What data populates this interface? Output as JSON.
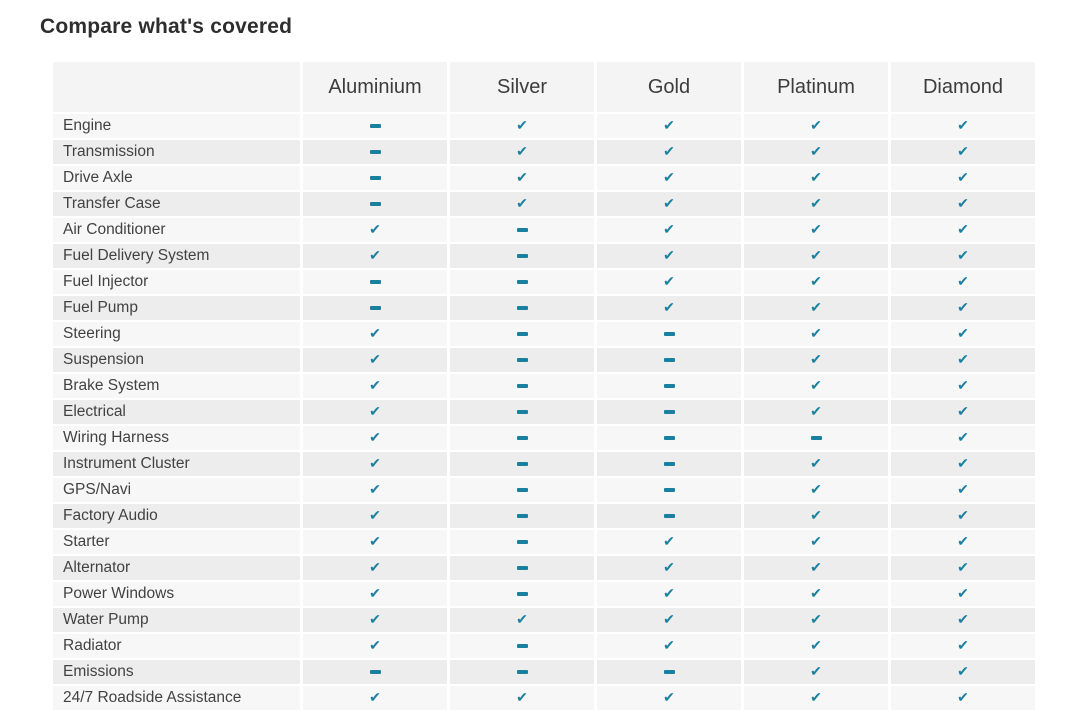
{
  "title": "Compare what's covered",
  "accent_color": "#1a80a0",
  "icons": {
    "check": "✔",
    "dash": "minus-dash"
  },
  "table": {
    "columns": [
      "Aluminium",
      "Silver",
      "Gold",
      "Platinum",
      "Diamond"
    ],
    "rows": [
      {
        "label": "Engine",
        "covered": [
          false,
          true,
          true,
          true,
          true
        ]
      },
      {
        "label": "Transmission",
        "covered": [
          false,
          true,
          true,
          true,
          true
        ]
      },
      {
        "label": "Drive Axle",
        "covered": [
          false,
          true,
          true,
          true,
          true
        ]
      },
      {
        "label": "Transfer Case",
        "covered": [
          false,
          true,
          true,
          true,
          true
        ]
      },
      {
        "label": "Air Conditioner",
        "covered": [
          true,
          false,
          true,
          true,
          true
        ]
      },
      {
        "label": "Fuel Delivery System",
        "covered": [
          true,
          false,
          true,
          true,
          true
        ]
      },
      {
        "label": "Fuel Injector",
        "covered": [
          false,
          false,
          true,
          true,
          true
        ]
      },
      {
        "label": "Fuel Pump",
        "covered": [
          false,
          false,
          true,
          true,
          true
        ]
      },
      {
        "label": "Steering",
        "covered": [
          true,
          false,
          false,
          true,
          true
        ]
      },
      {
        "label": "Suspension",
        "covered": [
          true,
          false,
          false,
          true,
          true
        ]
      },
      {
        "label": "Brake System",
        "covered": [
          true,
          false,
          false,
          true,
          true
        ]
      },
      {
        "label": "Electrical",
        "covered": [
          true,
          false,
          false,
          true,
          true
        ]
      },
      {
        "label": "Wiring Harness",
        "covered": [
          true,
          false,
          false,
          false,
          true
        ]
      },
      {
        "label": "Instrument Cluster",
        "covered": [
          true,
          false,
          false,
          true,
          true
        ]
      },
      {
        "label": "GPS/Navi",
        "covered": [
          true,
          false,
          false,
          true,
          true
        ]
      },
      {
        "label": "Factory Audio",
        "covered": [
          true,
          false,
          false,
          true,
          true
        ]
      },
      {
        "label": "Starter",
        "covered": [
          true,
          false,
          true,
          true,
          true
        ]
      },
      {
        "label": "Alternator",
        "covered": [
          true,
          false,
          true,
          true,
          true
        ]
      },
      {
        "label": "Power Windows",
        "covered": [
          true,
          false,
          true,
          true,
          true
        ]
      },
      {
        "label": "Water Pump",
        "covered": [
          true,
          true,
          true,
          true,
          true
        ]
      },
      {
        "label": "Radiator",
        "covered": [
          true,
          false,
          true,
          true,
          true
        ]
      },
      {
        "label": "Emissions",
        "covered": [
          false,
          false,
          false,
          true,
          true
        ]
      },
      {
        "label": "24/7 Roadside Assistance",
        "covered": [
          true,
          true,
          true,
          true,
          true
        ]
      }
    ]
  }
}
